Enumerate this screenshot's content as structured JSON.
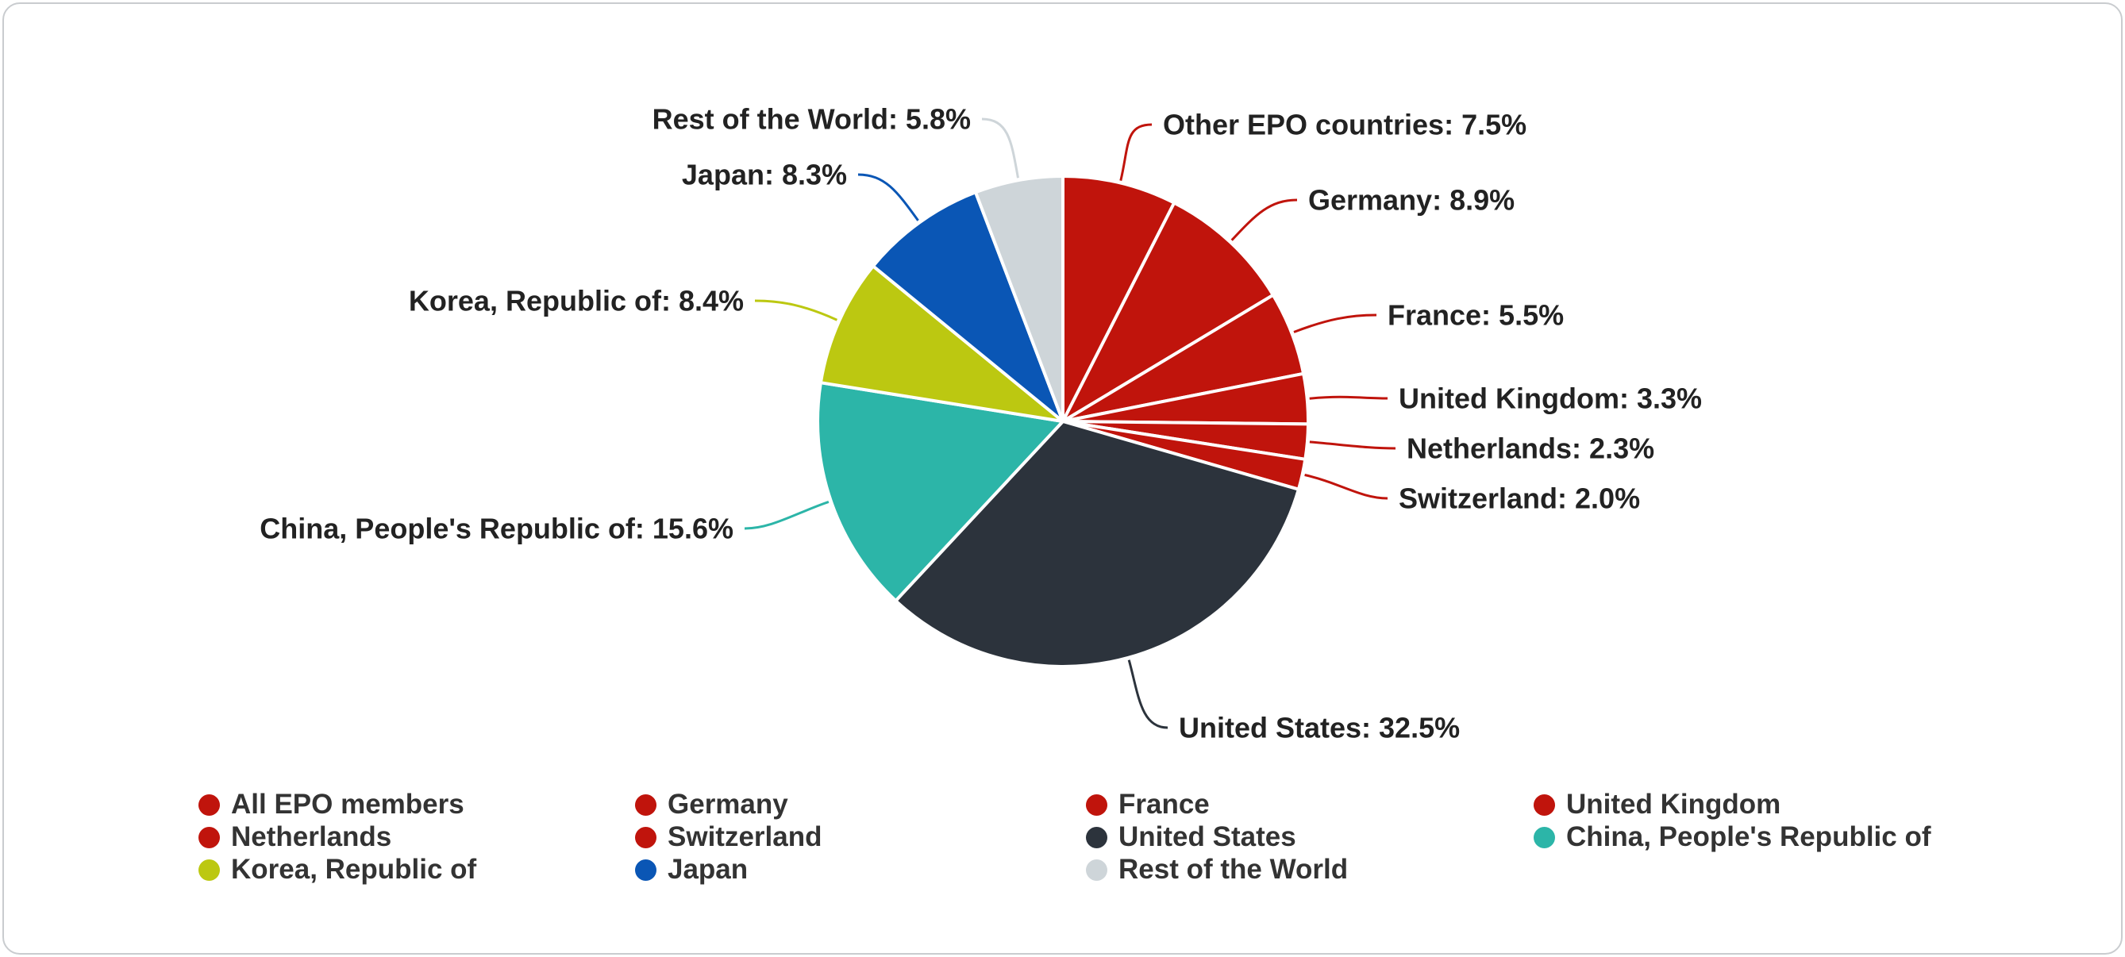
{
  "chart_data": {
    "type": "pie",
    "title": "",
    "value_unit": "%",
    "data_label_format": "{label}: {value}%",
    "start_angle_deg": 0,
    "direction": "clockwise",
    "slices": [
      {
        "label": "Other EPO countries",
        "value": 7.5,
        "color": "#c0140c"
      },
      {
        "label": "Germany",
        "value": 8.9,
        "color": "#c0140c"
      },
      {
        "label": "France",
        "value": 5.5,
        "color": "#c0140c"
      },
      {
        "label": "United Kingdom",
        "value": 3.3,
        "color": "#c0140c"
      },
      {
        "label": "Netherlands",
        "value": 2.3,
        "color": "#c0140c"
      },
      {
        "label": "Switzerland",
        "value": 2.0,
        "color": "#c0140c"
      },
      {
        "label": "United States",
        "value": 32.5,
        "color": "#2c333c"
      },
      {
        "label": "China, People's Republic of",
        "value": 15.6,
        "color": "#2cb5a8"
      },
      {
        "label": "Korea, Republic of",
        "value": 8.4,
        "color": "#bcc811"
      },
      {
        "label": "Japan",
        "value": 8.3,
        "color": "#0a56b5"
      },
      {
        "label": "Rest of the World",
        "value": 5.8,
        "color": "#ced5d9"
      }
    ],
    "legend": {
      "position": "bottom",
      "items": [
        {
          "label": "All EPO members",
          "color": "#c0140c"
        },
        {
          "label": "Germany",
          "color": "#c0140c"
        },
        {
          "label": "France",
          "color": "#c0140c"
        },
        {
          "label": "United Kingdom",
          "color": "#c0140c"
        },
        {
          "label": "Netherlands",
          "color": "#c0140c"
        },
        {
          "label": "Switzerland",
          "color": "#c0140c"
        },
        {
          "label": "United States",
          "color": "#2c333c"
        },
        {
          "label": "China, People's Republic of",
          "color": "#2cb5a8"
        },
        {
          "label": "Korea, Republic of",
          "color": "#bcc811"
        },
        {
          "label": "Japan",
          "color": "#0a56b5"
        },
        {
          "label": "Rest of the World",
          "color": "#ced5d9"
        }
      ]
    }
  },
  "theme": {
    "background": "#ffffff",
    "card_border": "#c9cccf",
    "slice_border": "#ffffff",
    "data_label_color": "#222222",
    "legend_text_color": "#333333"
  }
}
